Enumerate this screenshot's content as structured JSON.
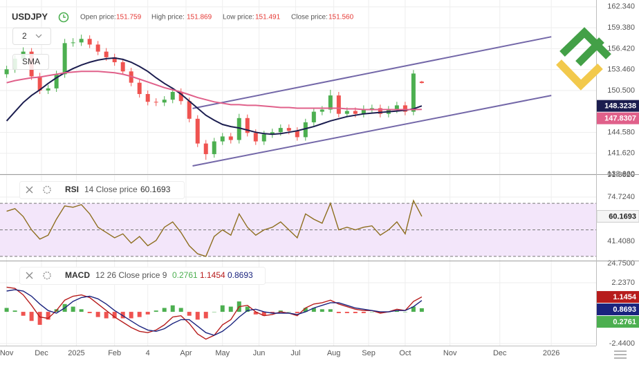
{
  "chart_data": [
    {
      "type": "candlestick",
      "symbol": "USDJPY",
      "header": [
        {
          "label": "Open price:",
          "value": "151.759"
        },
        {
          "label": "High price:",
          "value": "151.869"
        },
        {
          "label": "Low price:",
          "value": "151.491"
        },
        {
          "label": "Close price:",
          "value": "151.560"
        }
      ],
      "period_selector": "2",
      "indicator": "SMA",
      "x": [
        0,
        5,
        10,
        15,
        20,
        25,
        30,
        35,
        40,
        45,
        50,
        55,
        60,
        65,
        70,
        75,
        80,
        85,
        90,
        95,
        100,
        105,
        110,
        115,
        120,
        125,
        130,
        135,
        140,
        145,
        150,
        155,
        160,
        165,
        170,
        175,
        180,
        185,
        190,
        195,
        200,
        205,
        210,
        215,
        220,
        225,
        230,
        235,
        240,
        245,
        250
      ],
      "open": [
        152.8,
        153.5,
        155.0,
        156.0,
        152.5,
        150.5,
        150.8,
        152.8,
        157.2,
        157.3,
        157.8,
        157.0,
        156.0,
        155.2,
        154.5,
        153.2,
        151.6,
        150.0,
        148.9,
        148.8,
        149.2,
        150.3,
        149.0,
        146.5,
        143.0,
        141.5,
        143.3,
        144.0,
        143.5,
        146.6,
        144.5,
        143.3,
        144.3,
        144.6,
        145.2,
        144.8,
        143.9,
        146.0,
        147.5,
        147.8,
        149.8,
        147.2,
        147.6,
        147.2,
        147.9,
        148.0,
        147.2,
        147.8,
        148.4,
        147.5,
        151.759
      ],
      "high": [
        154.0,
        155.5,
        156.6,
        156.5,
        153.0,
        151.3,
        153.3,
        157.8,
        157.9,
        158.4,
        158.3,
        157.5,
        156.5,
        155.7,
        155.0,
        153.7,
        152.1,
        150.5,
        149.4,
        149.7,
        150.9,
        150.8,
        149.5,
        147.0,
        143.5,
        143.8,
        144.5,
        144.5,
        147.2,
        147.1,
        145.0,
        144.8,
        145.1,
        145.7,
        145.7,
        145.3,
        146.5,
        148.0,
        148.3,
        150.6,
        150.3,
        148.1,
        148.1,
        148.4,
        148.5,
        148.5,
        148.3,
        148.9,
        148.9,
        153.4,
        151.869
      ],
      "low": [
        152.3,
        153.0,
        154.5,
        152.0,
        150.0,
        150.0,
        150.3,
        152.3,
        156.7,
        156.8,
        156.5,
        155.5,
        154.7,
        154.0,
        152.7,
        151.1,
        149.5,
        148.4,
        148.3,
        148.3,
        148.7,
        148.5,
        146.0,
        142.5,
        140.7,
        141.0,
        142.8,
        143.0,
        143.0,
        144.0,
        142.8,
        142.8,
        143.8,
        144.1,
        144.3,
        143.4,
        143.4,
        145.5,
        147.0,
        147.3,
        146.7,
        146.7,
        146.7,
        146.7,
        147.4,
        146.7,
        146.7,
        147.3,
        147.0,
        147.0,
        151.491
      ],
      "close": [
        153.5,
        155.0,
        156.0,
        152.5,
        150.5,
        150.8,
        152.8,
        157.2,
        157.3,
        157.8,
        157.0,
        156.0,
        155.2,
        154.5,
        153.2,
        151.6,
        150.0,
        148.9,
        148.8,
        149.2,
        150.3,
        149.0,
        146.5,
        143.0,
        141.5,
        143.3,
        144.0,
        143.5,
        146.6,
        144.5,
        143.3,
        144.3,
        144.6,
        145.2,
        144.8,
        143.9,
        146.0,
        147.5,
        147.8,
        149.8,
        147.2,
        147.6,
        147.2,
        147.9,
        148.0,
        147.2,
        147.8,
        148.4,
        147.5,
        152.9,
        151.56
      ],
      "up_color": "#4caf50",
      "down_color": "#ef5350",
      "series": [
        {
          "color": "#1b1d4f",
          "values": [
            146.2,
            147.5,
            148.8,
            149.8,
            150.6,
            151.5,
            152.3,
            153.0,
            153.6,
            154.1,
            154.5,
            154.8,
            155.0,
            155.1,
            154.9,
            154.5,
            153.9,
            153.2,
            152.3,
            151.5,
            150.8,
            150.0,
            149.0,
            148.0,
            147.0,
            146.3,
            145.7,
            145.4,
            145.2,
            144.9,
            144.6,
            144.4,
            144.3,
            144.4,
            144.6,
            144.8,
            145.1,
            145.4,
            145.8,
            146.2,
            146.5,
            146.8,
            147.0,
            147.2,
            147.3,
            147.4,
            147.5,
            147.6,
            147.7,
            147.9,
            148.3238
          ]
        },
        {
          "color": "#e0608a",
          "values": [
            151.6,
            151.9,
            152.1,
            152.3,
            152.4,
            152.6,
            152.8,
            153.0,
            153.1,
            153.2,
            153.2,
            153.2,
            153.1,
            153.0,
            152.8,
            152.5,
            152.1,
            151.7,
            151.3,
            150.9,
            150.6,
            150.3,
            149.9,
            149.5,
            149.2,
            148.9,
            148.7,
            148.5,
            148.5,
            148.4,
            148.4,
            148.3,
            148.2,
            148.1,
            148.1,
            148.0,
            148.0,
            148.0,
            148.0,
            148.0,
            148.0,
            147.9,
            147.9,
            147.8,
            147.8,
            147.8,
            147.8,
            147.8,
            147.8,
            147.8,
            147.8307
          ]
        }
      ],
      "trendlines": [
        {
          "color": "#7367a8",
          "x": [
            112,
            328
          ],
          "values": [
            147.96,
            158.1
          ]
        },
        {
          "color": "#7367a8",
          "x": [
            112,
            328
          ],
          "values": [
            139.83,
            149.8
          ]
        }
      ],
      "xlim": [
        -4,
        355
      ],
      "ylim": [
        138.66,
        163.3
      ],
      "yticks": [
        {
          "value": 162.34,
          "label": "162.340"
        },
        {
          "value": 159.38,
          "label": "159.380"
        },
        {
          "value": 156.42,
          "label": "156.420"
        },
        {
          "value": 153.46,
          "label": "153.460"
        },
        {
          "value": 150.5,
          "label": "150.500"
        },
        {
          "value": 144.58,
          "label": "144.580"
        },
        {
          "value": 141.62,
          "label": "141.620"
        },
        {
          "value": 138.66,
          "label": "138.660"
        }
      ],
      "grid": true
    },
    {
      "type": "line",
      "title": "RSI",
      "params": "14 Close price",
      "x": [
        0,
        5,
        10,
        15,
        20,
        25,
        30,
        35,
        40,
        45,
        50,
        55,
        60,
        65,
        70,
        75,
        80,
        85,
        90,
        95,
        100,
        105,
        110,
        115,
        120,
        125,
        130,
        135,
        140,
        145,
        150,
        155,
        160,
        165,
        170,
        175,
        180,
        185,
        190,
        195,
        200,
        205,
        210,
        215,
        220,
        225,
        230,
        235,
        240,
        245,
        250
      ],
      "series": [
        {
          "color": "#8d6e1e",
          "values": [
            64,
            66,
            60,
            50,
            43,
            46,
            58,
            68,
            67,
            69,
            62,
            52,
            48,
            44,
            47,
            40,
            45,
            38,
            42,
            52,
            56,
            48,
            38,
            32,
            30,
            45,
            50,
            46,
            62,
            52,
            46,
            50,
            52,
            56,
            50,
            44,
            62,
            58,
            55,
            70,
            50,
            52,
            50,
            52,
            53,
            46,
            50,
            56,
            47,
            72,
            60.1693
          ]
        }
      ],
      "levels": [
        30,
        50,
        70
      ],
      "band_color": "#f3e6fa",
      "xlim": [
        -4,
        355
      ],
      "ylim": [
        24.75,
        91.382
      ],
      "yticks": [
        {
          "value": 91.382,
          "label": "91.3820"
        },
        {
          "value": 74.724,
          "label": "74.7240"
        },
        {
          "value": 41.408,
          "label": "41.4080"
        },
        {
          "value": 24.75,
          "label": "24.7500"
        }
      ],
      "grid": true
    },
    {
      "type": "combo",
      "title": "MACD",
      "params": "12 26 Close price 9",
      "x": [
        0,
        5,
        10,
        15,
        20,
        25,
        30,
        35,
        40,
        45,
        50,
        55,
        60,
        65,
        70,
        75,
        80,
        85,
        90,
        95,
        100,
        105,
        110,
        115,
        120,
        125,
        130,
        135,
        140,
        145,
        150,
        155,
        160,
        165,
        170,
        175,
        180,
        185,
        190,
        195,
        200,
        205,
        210,
        215,
        220,
        225,
        230,
        235,
        240,
        245,
        250
      ],
      "series": [
        {
          "kind": "bar",
          "positive_color": "#4caf50",
          "negative_color": "#ef5350",
          "values": [
            0.3,
            0.1,
            -0.3,
            -0.7,
            -1.0,
            -0.6,
            0.2,
            0.6,
            0.4,
            0.2,
            -0.1,
            -0.4,
            -0.5,
            -0.5,
            -0.5,
            -0.5,
            -0.4,
            -0.2,
            0.1,
            0.3,
            0.5,
            0.3,
            -0.3,
            -0.6,
            -0.5,
            0.0,
            0.5,
            0.4,
            0.8,
            0.4,
            -0.2,
            -0.3,
            -0.1,
            0.1,
            0.0,
            -0.1,
            0.3,
            0.3,
            0.2,
            0.2,
            -0.1,
            -0.1,
            -0.1,
            -0.1,
            0.0,
            -0.1,
            0.0,
            0.1,
            0.0,
            0.4,
            0.2761
          ]
        },
        {
          "kind": "line",
          "color": "#b71c1c",
          "values": [
            1.9,
            1.8,
            1.3,
            0.5,
            -0.4,
            -0.5,
            0.1,
            0.9,
            1.2,
            1.3,
            1.1,
            0.6,
            0.1,
            -0.4,
            -0.8,
            -1.2,
            -1.5,
            -1.6,
            -1.4,
            -1.0,
            -0.4,
            -0.3,
            -0.9,
            -1.7,
            -2.1,
            -1.8,
            -1.0,
            -0.6,
            0.4,
            0.5,
            0.0,
            -0.3,
            -0.2,
            0.0,
            -0.1,
            -0.3,
            0.3,
            0.6,
            0.7,
            0.9,
            0.6,
            0.4,
            0.2,
            0.1,
            0.1,
            -0.1,
            0.0,
            0.2,
            0.1,
            0.8,
            1.1454
          ]
        },
        {
          "kind": "line",
          "color": "#1a237e",
          "values": [
            1.6,
            1.7,
            1.6,
            1.2,
            0.6,
            0.1,
            -0.1,
            0.3,
            0.8,
            1.1,
            1.2,
            1.0,
            0.6,
            0.1,
            -0.3,
            -0.7,
            -1.1,
            -1.4,
            -1.5,
            -1.3,
            -0.9,
            -0.6,
            -0.6,
            -1.1,
            -1.6,
            -1.8,
            -1.5,
            -1.0,
            -0.4,
            0.1,
            0.2,
            0.0,
            -0.1,
            -0.1,
            -0.1,
            -0.2,
            0.0,
            0.3,
            0.5,
            0.7,
            0.7,
            0.5,
            0.3,
            0.2,
            0.1,
            0.0,
            0.0,
            0.1,
            0.1,
            0.4,
            0.8693
          ]
        }
      ],
      "xlim": [
        -4,
        355
      ],
      "ylim": [
        -2.6,
        3.886
      ],
      "yticks": [
        {
          "value": 2.237,
          "label": "2.2370"
        },
        {
          "value": -2.44,
          "label": "-2.4400"
        }
      ],
      "xticks": [
        {
          "value": 0,
          "label": "Nov"
        },
        {
          "value": 21,
          "label": "Dec"
        },
        {
          "value": 42,
          "label": "2025"
        },
        {
          "value": 65,
          "label": "Feb"
        },
        {
          "value": 85,
          "label": "4"
        },
        {
          "value": 108,
          "label": "Apr"
        },
        {
          "value": 130,
          "label": "May"
        },
        {
          "value": 152,
          "label": "Jun"
        },
        {
          "value": 174,
          "label": "Jul"
        },
        {
          "value": 197,
          "label": "Aug"
        },
        {
          "value": 218,
          "label": "Sep"
        },
        {
          "value": 240,
          "label": "Oct"
        },
        {
          "value": 267,
          "label": "Nov"
        },
        {
          "value": 297,
          "label": "Dec"
        },
        {
          "value": 328,
          "label": "2026"
        }
      ],
      "grid": true
    }
  ]
}
